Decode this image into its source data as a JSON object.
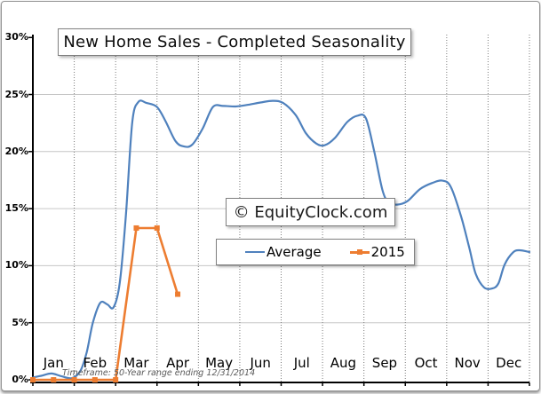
{
  "title": "New Home Sales - Completed Seasonality",
  "watermark": "© EquityClock.com",
  "footnote": "Timeframe: 50-Year range ending 12/31/2014",
  "legend": {
    "average_label": "Average",
    "y2015_label": "2015"
  },
  "colors": {
    "average_line": "#4f81bd",
    "series_2015": "#ed7d31",
    "grid_horizontal": "#c6c6c6",
    "grid_vertical": "#7a7a7a",
    "axis": "#000000",
    "footnote_text": "#595959"
  },
  "chart_data": {
    "type": "line",
    "title": "New Home Sales - Completed Seasonality",
    "x_axis": {
      "categories": [
        "Jan",
        "Feb",
        "Mar",
        "Apr",
        "May",
        "Jun",
        "Jul",
        "Aug",
        "Sep",
        "Oct",
        "Nov",
        "Dec"
      ],
      "unit": "month",
      "range_months": [
        0,
        12
      ]
    },
    "y_axis": {
      "unit": "%",
      "min": 0,
      "max": 30,
      "tick_interval": 5,
      "tick_labels_top_to_bottom": [
        "30%",
        "25%",
        "20%",
        "15%",
        "10%",
        "5%",
        "0%"
      ]
    },
    "grid": {
      "horizontal": "solid",
      "vertical": "dotted-month-boundaries"
    },
    "legend_position": "center-right-box",
    "series": [
      {
        "name": "Average",
        "color": "#4f81bd",
        "line_style": "smooth",
        "markers": "none",
        "points_month_pct": [
          [
            0,
            0.2
          ],
          [
            0.2,
            0.35
          ],
          [
            0.45,
            0.55
          ],
          [
            0.7,
            0.3
          ],
          [
            0.95,
            0.15
          ],
          [
            1.15,
            0.8
          ],
          [
            1.3,
            2.4
          ],
          [
            1.45,
            5.0
          ],
          [
            1.63,
            6.75
          ],
          [
            1.8,
            6.6
          ],
          [
            1.95,
            6.35
          ],
          [
            2.1,
            8.5
          ],
          [
            2.25,
            14.5
          ],
          [
            2.4,
            22.5
          ],
          [
            2.55,
            24.35
          ],
          [
            2.75,
            24.25
          ],
          [
            3.0,
            23.9
          ],
          [
            3.2,
            22.7
          ],
          [
            3.45,
            20.9
          ],
          [
            3.65,
            20.45
          ],
          [
            3.85,
            20.6
          ],
          [
            4.1,
            22.0
          ],
          [
            4.35,
            23.9
          ],
          [
            4.6,
            24.0
          ],
          [
            4.9,
            23.95
          ],
          [
            5.2,
            24.1
          ],
          [
            5.5,
            24.3
          ],
          [
            5.8,
            24.45
          ],
          [
            6.05,
            24.25
          ],
          [
            6.35,
            23.2
          ],
          [
            6.6,
            21.6
          ],
          [
            6.85,
            20.7
          ],
          [
            7.05,
            20.55
          ],
          [
            7.3,
            21.2
          ],
          [
            7.6,
            22.6
          ],
          [
            7.85,
            23.15
          ],
          [
            8.05,
            22.9
          ],
          [
            8.25,
            20.0
          ],
          [
            8.45,
            16.6
          ],
          [
            8.6,
            15.55
          ],
          [
            8.8,
            15.35
          ],
          [
            9.05,
            15.65
          ],
          [
            9.35,
            16.7
          ],
          [
            9.65,
            17.25
          ],
          [
            9.9,
            17.45
          ],
          [
            10.1,
            16.9
          ],
          [
            10.35,
            14.3
          ],
          [
            10.55,
            11.5
          ],
          [
            10.7,
            9.3
          ],
          [
            10.9,
            8.1
          ],
          [
            11.1,
            8.0
          ],
          [
            11.25,
            8.45
          ],
          [
            11.4,
            10.1
          ],
          [
            11.6,
            11.15
          ],
          [
            11.75,
            11.35
          ],
          [
            12,
            11.2
          ]
        ]
      },
      {
        "name": "2015",
        "color": "#ed7d31",
        "line_style": "straight",
        "markers": "square",
        "points_month_pct": [
          [
            0,
            0
          ],
          [
            0.5,
            0
          ],
          [
            1,
            0
          ],
          [
            1.5,
            0
          ],
          [
            2,
            0
          ],
          [
            2.5,
            13.3
          ],
          [
            3,
            13.3
          ],
          [
            3.5,
            7.5
          ]
        ]
      }
    ],
    "annotations": {
      "watermark": "© EquityClock.com",
      "footnote": "Timeframe: 50-Year range ending 12/31/2014"
    }
  }
}
